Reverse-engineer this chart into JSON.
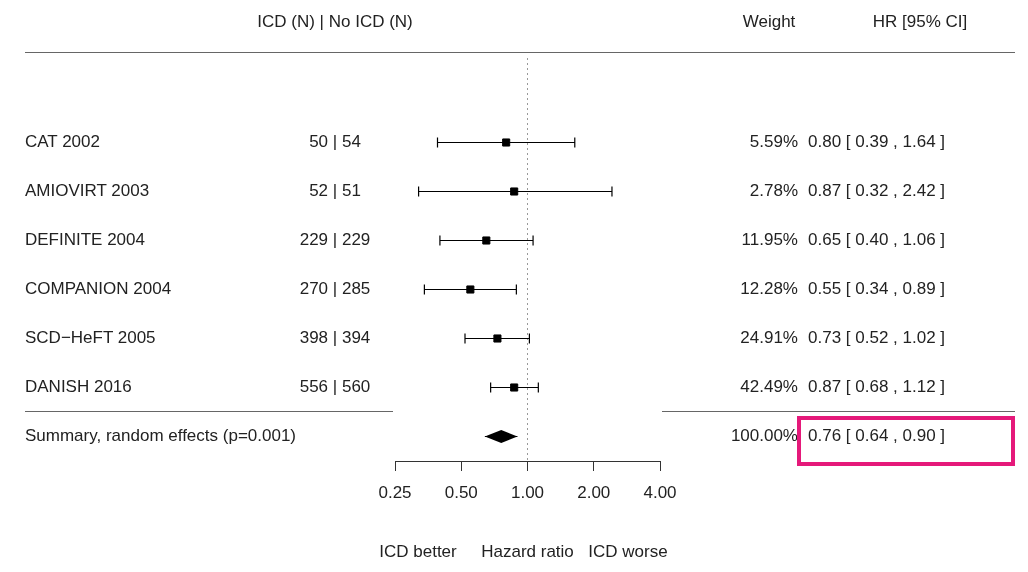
{
  "chart_data": {
    "type": "scatter",
    "orientation": "horizontal",
    "xlabel": "Hazard ratio",
    "log": "x",
    "categories": [
      "CAT 2002",
      "AMIOVIRT 2003",
      "DEFINITE 2004",
      "COMPANION 2004",
      "SCD−HeFT 2005",
      "DANISH 2016",
      "Summary, random effects (p=0.001)"
    ],
    "series": [
      {
        "color": "#000000",
        "marker": "square",
        "values": [
          0.8,
          0.87,
          0.65,
          0.55,
          0.73,
          0.87,
          null
        ],
        "errors": [
          [
            0.39,
            1.64
          ],
          [
            0.32,
            2.42
          ],
          [
            0.4,
            1.06
          ],
          [
            0.34,
            0.89
          ],
          [
            0.52,
            1.02
          ],
          [
            0.68,
            1.12
          ],
          null
        ]
      },
      {
        "color": "#000000",
        "marker": "diamond",
        "values": [
          null,
          null,
          null,
          null,
          null,
          null,
          0.76
        ],
        "errors": [
          null,
          null,
          null,
          null,
          null,
          null,
          [
            0.64,
            0.9
          ]
        ]
      }
    ],
    "value_labels": [
      "0.80 [ 0.39 , 1.64 ]",
      "0.87 [ 0.32 , 2.42 ]",
      "0.65 [ 0.40 , 1.06 ]",
      "0.55 [ 0.34 , 0.89 ]",
      "0.73 [ 0.52 , 1.02 ]",
      "0.87 [ 0.68 , 1.12 ]",
      "0.76 [ 0.64 , 0.90 ]"
    ],
    "xlim": [
      0.25,
      4
    ],
    "xticks": [
      0.25,
      {
        "value": 0.5,
        "label": "0.50"
      },
      {
        "value": 1,
        "label": "1.00"
      },
      {
        "value": 2,
        "label": "2.00"
      },
      {
        "value": 4,
        "label": "4.00"
      }
    ],
    "ref_lines": [
      {
        "axis": "x",
        "value": 1,
        "line_style": "dotted",
        "color": "#999999"
      }
    ],
    "annotations": [
      "ICD (N) | No ICD (N)",
      "Weight",
      "HR [95% CI]",
      "ICD better",
      "ICD worse",
      "50 | 54",
      "5.59%",
      "52 | 51",
      "2.78%",
      "229 | 229",
      "11.95%",
      "270 | 285",
      "12.28%",
      "398 | 394",
      "24.91%",
      "556 | 560",
      "42.49%",
      "100.00%"
    ]
  }
}
